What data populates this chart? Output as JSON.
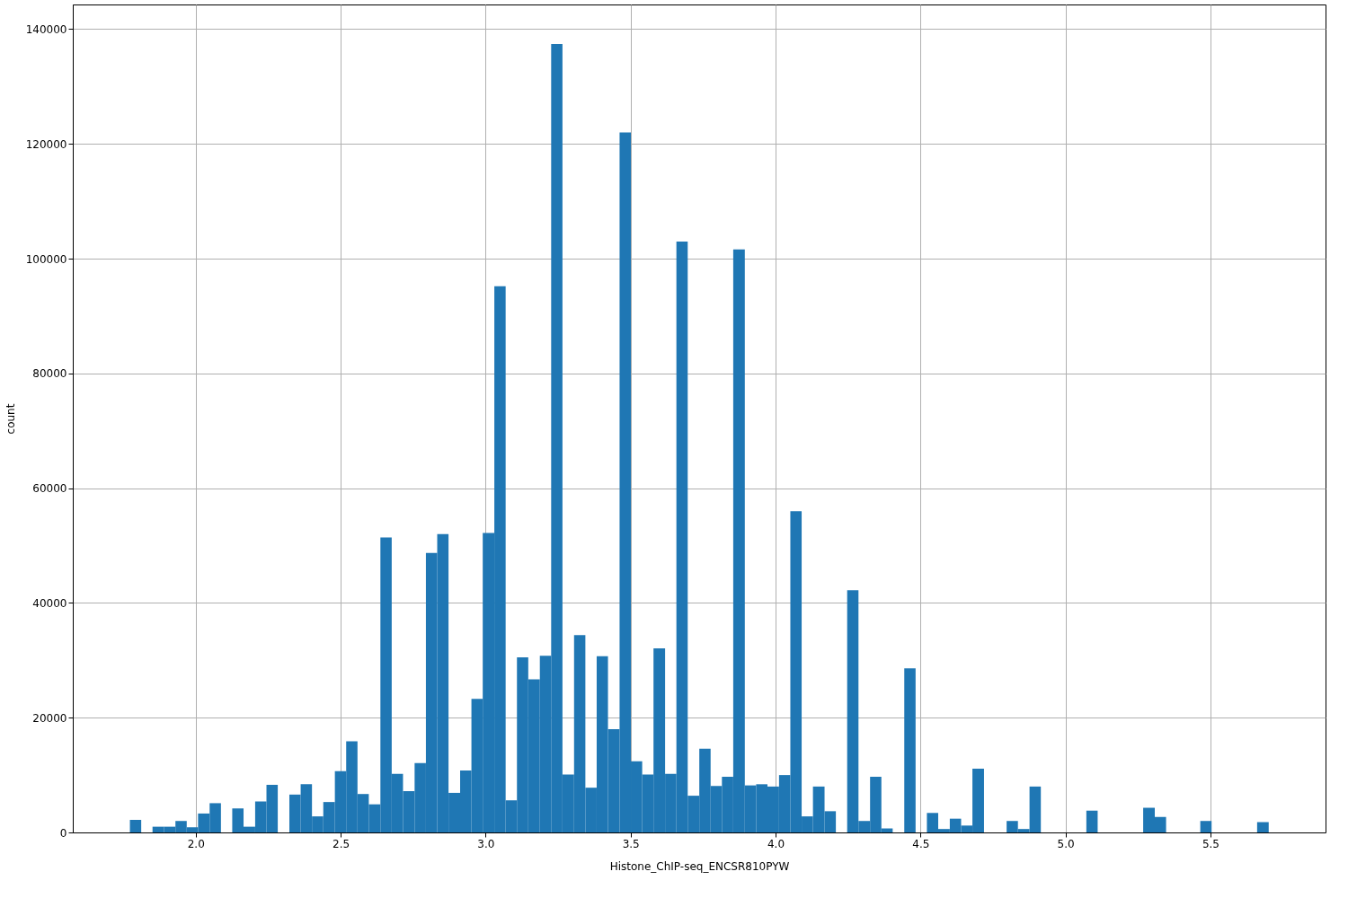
{
  "chart_data": {
    "type": "histogram",
    "xlabel": "Histone_ChIP-seq_ENCSR810PYW",
    "ylabel": "count",
    "bins": [
      1.773,
      1.812,
      1.851,
      1.891,
      1.93,
      1.969,
      2.008,
      2.048,
      2.087,
      2.126,
      2.165,
      2.205,
      2.244,
      2.283,
      2.323,
      2.362,
      2.401,
      2.44,
      2.48,
      2.519,
      2.558,
      2.597,
      2.637,
      2.676,
      2.715,
      2.755,
      2.794,
      2.833,
      2.872,
      2.912,
      2.951,
      2.99,
      3.03,
      3.069,
      3.108,
      3.147,
      3.187,
      3.226,
      3.265,
      3.305,
      3.344,
      3.383,
      3.422,
      3.462,
      3.501,
      3.54,
      3.579,
      3.619,
      3.658,
      3.697,
      3.737,
      3.776,
      3.815,
      3.854,
      3.894,
      3.933,
      3.972,
      4.012,
      4.051,
      4.09,
      4.129,
      4.169,
      4.208,
      4.247,
      4.286,
      4.326,
      4.365,
      4.404,
      4.444,
      4.483,
      4.522,
      4.561,
      4.601,
      4.64,
      4.679,
      4.719,
      4.758,
      4.797,
      4.836,
      4.876,
      4.915,
      4.954,
      4.994,
      5.033,
      5.072,
      5.111,
      5.151,
      5.19,
      5.229,
      5.268,
      5.308,
      5.347,
      5.386,
      5.426,
      5.465,
      5.504,
      5.543,
      5.583,
      5.622,
      5.661,
      5.701
    ],
    "values": [
      2200,
      0,
      1000,
      1000,
      2000,
      900,
      3300,
      5100,
      0,
      4200,
      1000,
      5400,
      8300,
      0,
      6600,
      8400,
      2800,
      5300,
      10700,
      15900,
      6700,
      4900,
      51400,
      10200,
      7200,
      12100,
      48700,
      52000,
      6900,
      10800,
      23300,
      52200,
      95200,
      5600,
      30500,
      26700,
      30800,
      137400,
      10100,
      34400,
      7800,
      30700,
      18000,
      122000,
      12400,
      10100,
      32100,
      10200,
      103000,
      6400,
      14600,
      8100,
      9700,
      101600,
      8200,
      8400,
      8000,
      10000,
      56000,
      2800,
      8000,
      3700,
      0,
      42200,
      2000,
      9700,
      700,
      0,
      28600,
      0,
      3400,
      600,
      2400,
      1200,
      11100,
      0,
      0,
      2000,
      600,
      8000,
      0,
      0,
      0,
      0,
      3800,
      0,
      0,
      0,
      0,
      4300,
      2700,
      0,
      0,
      0,
      2000,
      0,
      0,
      0,
      0,
      1800
    ],
    "color": "#1f77b4",
    "xlim": [
      1.576,
      5.897
    ],
    "xticks": [
      {
        "value": 2.0,
        "label": "2.0"
      },
      {
        "value": 2.5,
        "label": "2.5"
      },
      {
        "value": 3.0,
        "label": "3.0"
      },
      {
        "value": 3.5,
        "label": "3.5"
      },
      {
        "value": 4.0,
        "label": "4.0"
      },
      {
        "value": 4.5,
        "label": "4.5"
      },
      {
        "value": 5.0,
        "label": "5.0"
      },
      {
        "value": 5.5,
        "label": "5.5"
      }
    ],
    "ylim": [
      0,
      144300
    ],
    "yticks": [
      0,
      20000,
      40000,
      60000,
      80000,
      100000,
      120000,
      140000
    ],
    "grid": true
  }
}
